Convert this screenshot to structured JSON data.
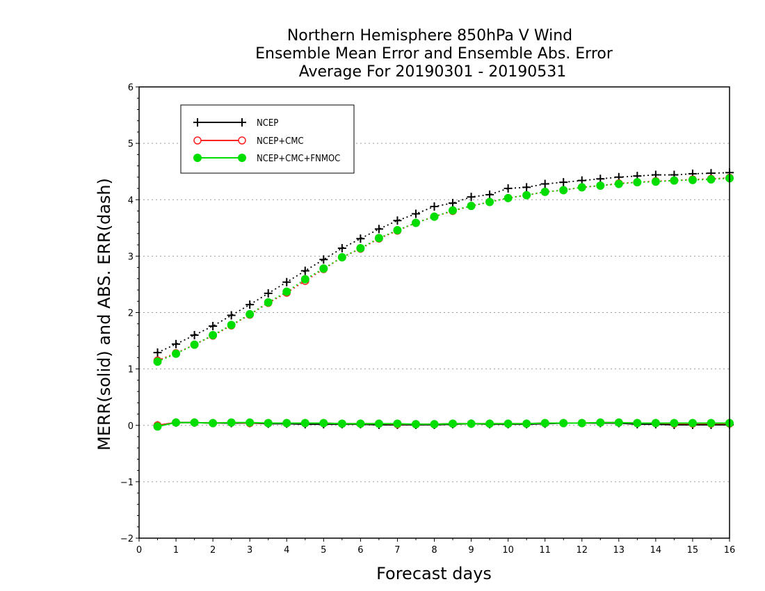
{
  "chart_data": {
    "type": "line",
    "title": [
      "Northern Hemisphere 850hPa V Wind",
      "Ensemble Mean Error and Ensemble Abs. Error",
      "Average For 20190301 - 20190531"
    ],
    "xlabel": "Forecast days",
    "ylabel": "MERR(solid) and ABS. ERR(dash)",
    "xlim": [
      0,
      16
    ],
    "ylim": [
      -2,
      6
    ],
    "xticks": [
      0,
      1,
      2,
      3,
      4,
      5,
      6,
      7,
      8,
      9,
      10,
      11,
      12,
      13,
      14,
      15,
      16
    ],
    "yticks": [
      -2,
      -1,
      0,
      1,
      2,
      3,
      4,
      5,
      6
    ],
    "grid": "horizontal dotted",
    "legend_placement": "top-left",
    "x": [
      0.5,
      1,
      1.5,
      2,
      2.5,
      3,
      3.5,
      4,
      4.5,
      5,
      5.5,
      6,
      6.5,
      7,
      7.5,
      8,
      8.5,
      9,
      9.5,
      10,
      10.5,
      11,
      11.5,
      12,
      12.5,
      13,
      13.5,
      14,
      14.5,
      15,
      15.5,
      16
    ],
    "series": [
      {
        "name": "NCEP",
        "color": "#000000",
        "marker": "plus",
        "abs_err": [
          1.29,
          1.44,
          1.6,
          1.76,
          1.95,
          2.14,
          2.34,
          2.54,
          2.74,
          2.94,
          3.14,
          3.31,
          3.48,
          3.63,
          3.75,
          3.88,
          3.94,
          4.05,
          4.09,
          4.2,
          4.22,
          4.28,
          4.31,
          4.34,
          4.37,
          4.4,
          4.42,
          4.44,
          4.44,
          4.46,
          4.47,
          4.48
        ],
        "mean_err": [
          0.0,
          0.05,
          0.05,
          0.04,
          0.04,
          0.04,
          0.03,
          0.03,
          0.02,
          0.02,
          0.02,
          0.02,
          0.01,
          0.01,
          0.01,
          0.01,
          0.02,
          0.03,
          0.02,
          0.02,
          0.02,
          0.03,
          0.04,
          0.04,
          0.04,
          0.04,
          0.02,
          0.02,
          0.01,
          0.01,
          0.01,
          0.01
        ]
      },
      {
        "name": "NCEP+CMC",
        "color": "#ff2020",
        "marker": "open-circle",
        "abs_err": [
          1.15,
          1.28,
          1.43,
          1.59,
          1.77,
          1.96,
          2.17,
          2.35,
          2.56,
          2.77,
          2.98,
          3.13,
          3.31,
          3.45,
          3.59,
          3.7,
          3.8,
          3.89,
          3.96,
          4.03,
          4.08,
          4.14,
          4.17,
          4.22,
          4.25,
          4.29,
          4.31,
          4.33,
          4.34,
          4.36,
          4.37,
          4.39
        ],
        "mean_err": [
          0.0,
          0.05,
          0.05,
          0.04,
          0.05,
          0.04,
          0.04,
          0.04,
          0.04,
          0.04,
          0.03,
          0.03,
          0.03,
          0.02,
          0.02,
          0.02,
          0.03,
          0.03,
          0.03,
          0.03,
          0.03,
          0.04,
          0.04,
          0.04,
          0.05,
          0.05,
          0.04,
          0.04,
          0.03,
          0.03,
          0.03,
          0.03
        ]
      },
      {
        "name": "NCEP+CMC+FNMOC",
        "color": "#00dd00",
        "marker": "filled-circle",
        "abs_err": [
          1.13,
          1.27,
          1.43,
          1.6,
          1.78,
          1.97,
          2.18,
          2.37,
          2.59,
          2.78,
          2.98,
          3.14,
          3.32,
          3.46,
          3.59,
          3.7,
          3.81,
          3.89,
          3.96,
          4.03,
          4.08,
          4.14,
          4.17,
          4.22,
          4.25,
          4.28,
          4.31,
          4.32,
          4.34,
          4.35,
          4.36,
          4.38
        ],
        "mean_err": [
          -0.02,
          0.05,
          0.05,
          0.04,
          0.05,
          0.05,
          0.04,
          0.04,
          0.04,
          0.04,
          0.03,
          0.03,
          0.03,
          0.03,
          0.02,
          0.02,
          0.03,
          0.03,
          0.03,
          0.03,
          0.03,
          0.04,
          0.04,
          0.04,
          0.05,
          0.05,
          0.04,
          0.04,
          0.04,
          0.04,
          0.04,
          0.04
        ]
      }
    ]
  }
}
